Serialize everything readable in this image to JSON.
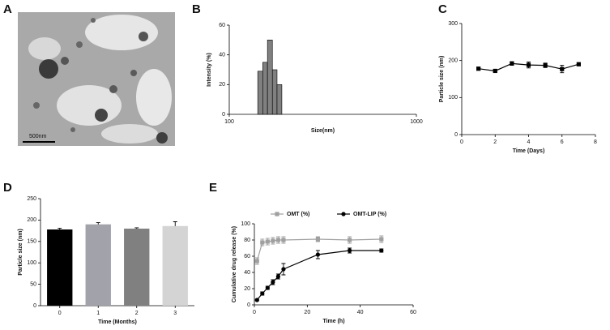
{
  "image": {
    "panel_label": "A",
    "scale_bar_label": "500nm"
  },
  "chart_data": [
    {
      "type": "histogram",
      "panel_label": "B",
      "x_label": "Size(nm)",
      "y_label": "Intensity (%)",
      "bins": [
        142,
        151,
        160,
        170,
        180,
        191
      ],
      "values": [
        29,
        35,
        50,
        30,
        20
      ],
      "color": "#808080",
      "xscale": "log",
      "xlim": [
        100,
        1000
      ],
      "xticks": [
        100,
        1000
      ],
      "ylim": [
        0,
        60
      ],
      "yticks": [
        0,
        20,
        40,
        60
      ]
    },
    {
      "type": "line",
      "panel_label": "C",
      "x_label": "Time (Days)",
      "y_label": "Particle size (nm)",
      "x": [
        1,
        2,
        3,
        4,
        5,
        6,
        7
      ],
      "values": [
        178,
        172,
        192,
        188,
        187,
        177,
        190
      ],
      "errors": [
        4,
        3,
        5,
        8,
        6,
        10,
        4
      ],
      "color": "#000000",
      "xlim": [
        0,
        8
      ],
      "xticks": [
        0,
        2,
        4,
        6,
        8
      ],
      "ylim": [
        0,
        300
      ],
      "yticks": [
        0,
        100,
        200,
        300
      ]
    },
    {
      "type": "bar",
      "panel_label": "D",
      "x_label": "Time (Months)",
      "y_label": "Particle size (nm)",
      "categories": [
        "0",
        "1",
        "2",
        "3"
      ],
      "values": [
        178,
        190,
        180,
        186
      ],
      "errors": [
        3,
        4,
        2,
        10
      ],
      "colors": [
        "#000000",
        "#a2a2aa",
        "#808080",
        "#d4d4d4"
      ],
      "ylim": [
        0,
        250
      ],
      "yticks": [
        0,
        50,
        100,
        150,
        200,
        250
      ]
    },
    {
      "type": "line",
      "panel_label": "E",
      "x_label": "Time (h)",
      "y_label": "Cumulative drug release (%)",
      "x": [
        1,
        3,
        5,
        7,
        9,
        11,
        24,
        36,
        48
      ],
      "series": [
        {
          "name": "OMT (%)",
          "color": "#a0a0a0",
          "marker": "square",
          "values": [
            54,
            77,
            78,
            79,
            80,
            80,
            81,
            80,
            81
          ],
          "errors": [
            4,
            4,
            4,
            4,
            4,
            4,
            3,
            4,
            4
          ]
        },
        {
          "name": "OMT-LIP (%)",
          "color": "#000000",
          "marker": "circle",
          "values": [
            6,
            14,
            21,
            28,
            35,
            44,
            62,
            67,
            67
          ],
          "errors": [
            1,
            2,
            2,
            3,
            3,
            7,
            5,
            3,
            2
          ]
        }
      ],
      "xlim": [
        0,
        60
      ],
      "xticks": [
        0,
        20,
        40,
        60
      ],
      "ylim": [
        0,
        100
      ],
      "yticks": [
        0,
        20,
        40,
        60,
        80,
        100
      ]
    }
  ]
}
